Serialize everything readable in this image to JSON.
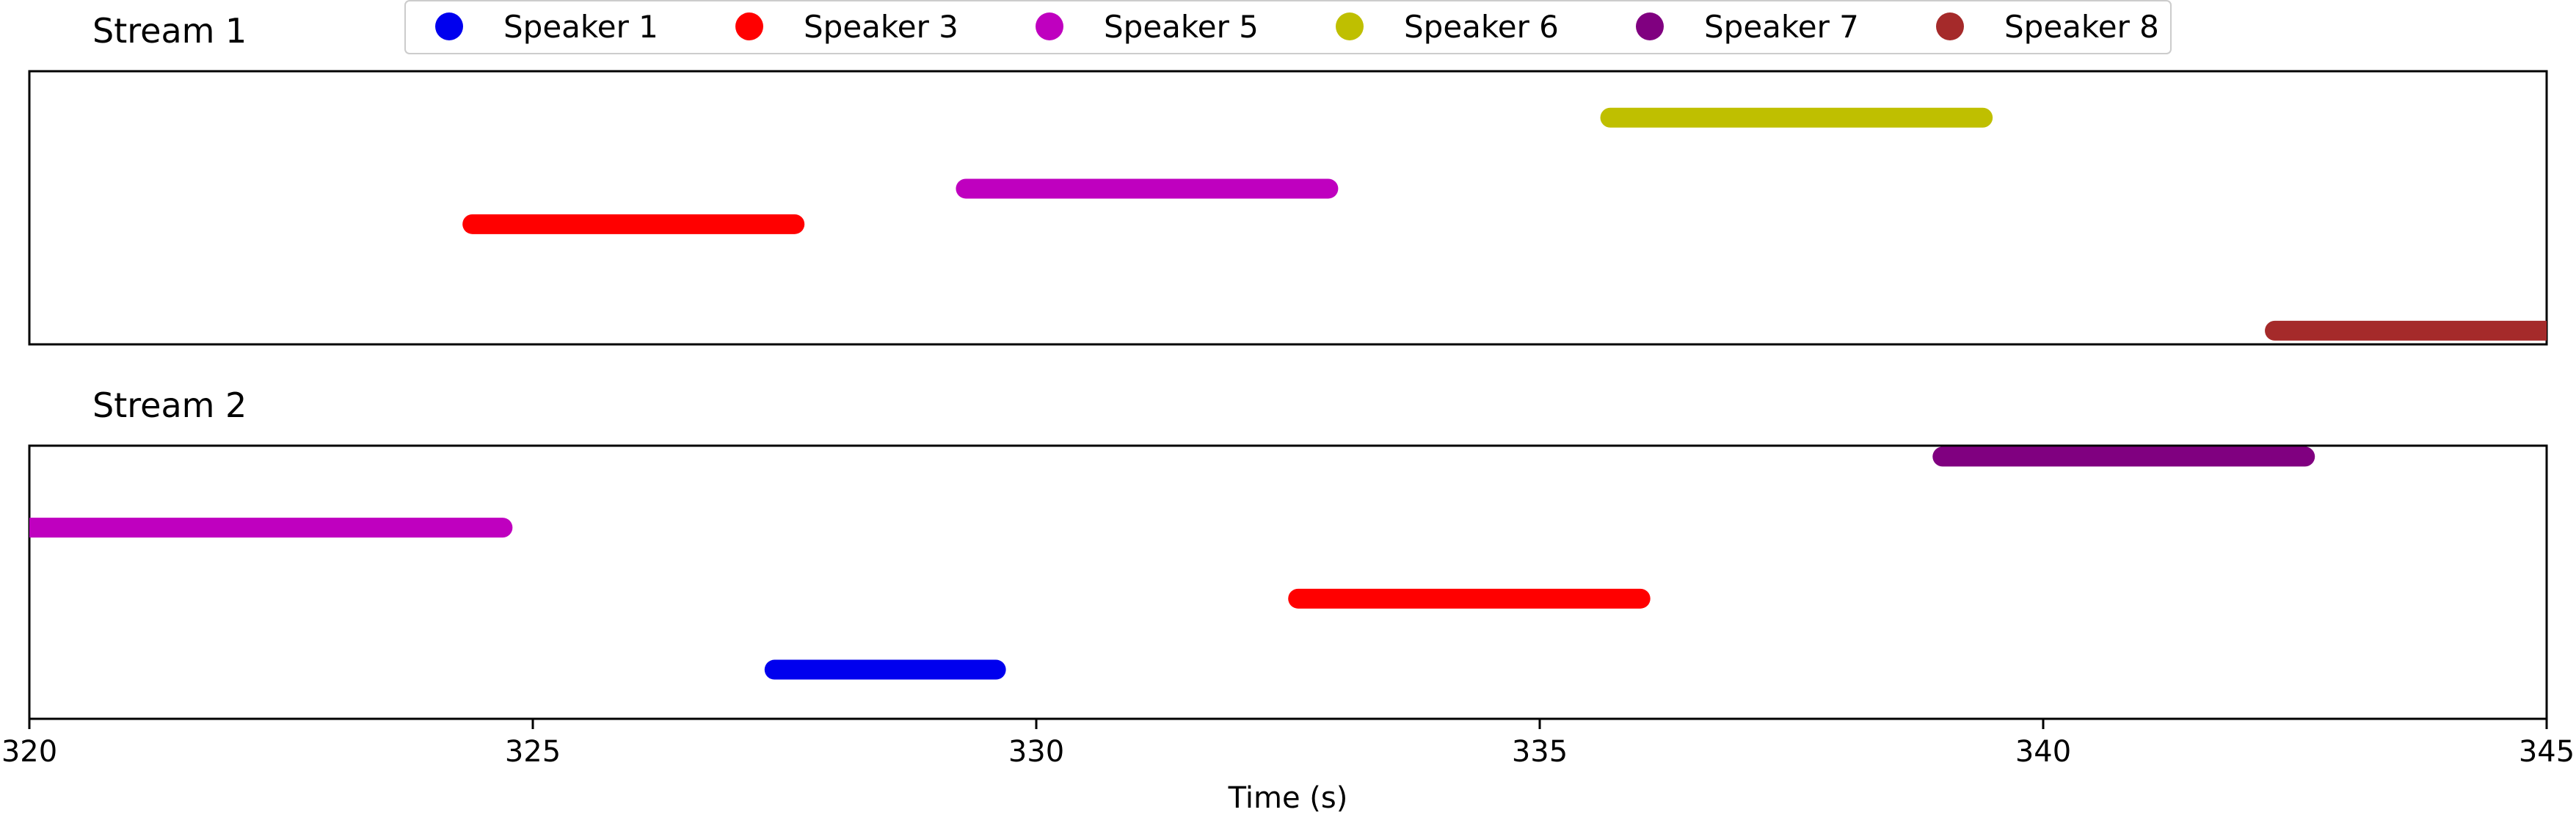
{
  "chart_data": {
    "type": "timeline",
    "xlabel": "Time (s)",
    "xlim": [
      320,
      345
    ],
    "xticks": [
      320,
      325,
      330,
      335,
      340,
      345
    ],
    "legend": {
      "placement": "top-center",
      "entries": [
        {
          "name": "Speaker 1",
          "color": "#0000ee"
        },
        {
          "name": "Speaker 3",
          "color": "#ff0000"
        },
        {
          "name": "Speaker 5",
          "color": "#bf00bf"
        },
        {
          "name": "Speaker 6",
          "color": "#bfbf00"
        },
        {
          "name": "Speaker 7",
          "color": "#800080"
        },
        {
          "name": "Speaker 8",
          "color": "#a52a2a"
        }
      ]
    },
    "panels": [
      {
        "title": "Stream 1",
        "segments": [
          {
            "speaker": "Speaker 3",
            "start": 324.4,
            "end": 327.6,
            "level": 0.44
          },
          {
            "speaker": "Speaker 5",
            "start": 329.3,
            "end": 332.9,
            "level": 0.57
          },
          {
            "speaker": "Speaker 6",
            "start": 335.7,
            "end": 339.4,
            "level": 0.83
          },
          {
            "speaker": "Speaker 8",
            "start": 342.3,
            "end": 345.0,
            "level": 0.05
          }
        ]
      },
      {
        "title": "Stream 2",
        "segments": [
          {
            "speaker": "Speaker 5",
            "start": 320.0,
            "end": 324.7,
            "level": 0.7
          },
          {
            "speaker": "Speaker 1",
            "start": 327.4,
            "end": 329.6,
            "level": 0.18
          },
          {
            "speaker": "Speaker 3",
            "start": 332.6,
            "end": 336.0,
            "level": 0.44
          },
          {
            "speaker": "Speaker 7",
            "start": 339.0,
            "end": 342.6,
            "level": 0.96
          }
        ]
      }
    ]
  }
}
